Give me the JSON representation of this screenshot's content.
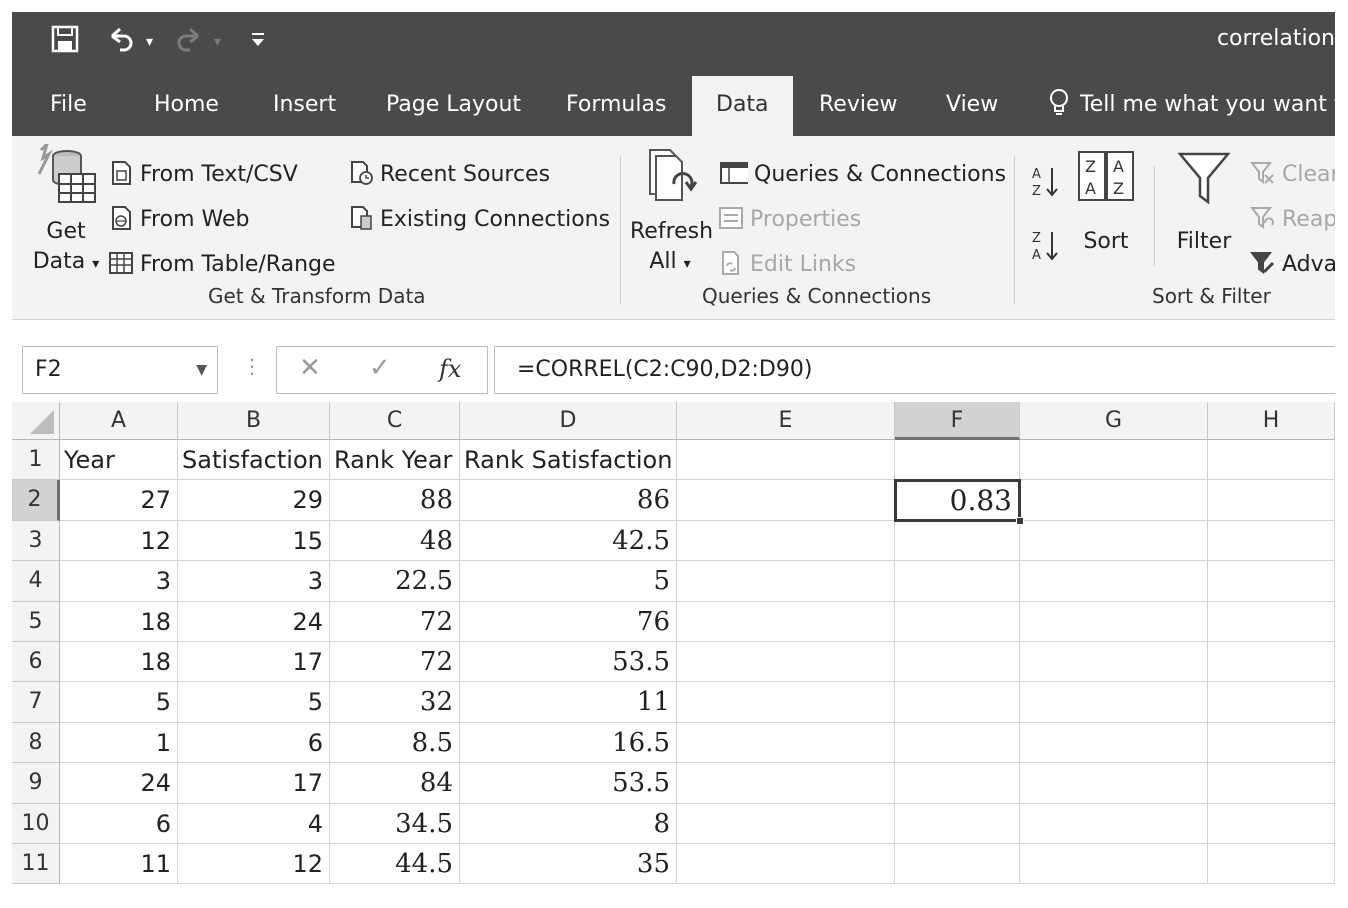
{
  "window": {
    "title": "correlation"
  },
  "quick_access": {
    "save_icon": "save-icon",
    "undo_icon": "undo-icon",
    "redo_icon": "redo-icon",
    "customize_icon": "customize-icon"
  },
  "tabs": [
    {
      "label": "File"
    },
    {
      "label": "Home"
    },
    {
      "label": "Insert"
    },
    {
      "label": "Page Layout"
    },
    {
      "label": "Formulas"
    },
    {
      "label": "Data",
      "active": true
    },
    {
      "label": "Review"
    },
    {
      "label": "View"
    }
  ],
  "tell_me": "Tell me what you want to",
  "ribbon": {
    "get_data": {
      "line1": "Get",
      "line2": "Data"
    },
    "from_text_csv": "From Text/CSV",
    "from_web": "From Web",
    "from_table_range": "From Table/Range",
    "recent_sources": "Recent Sources",
    "existing_connections": "Existing Connections",
    "group_get_transform": "Get & Transform Data",
    "refresh": {
      "line1": "Refresh",
      "line2": "All"
    },
    "queries_connections": "Queries & Connections",
    "properties": "Properties",
    "edit_links": "Edit Links",
    "group_queries": "Queries & Connections",
    "sort": "Sort",
    "filter": "Filter",
    "clear": "Clear",
    "reapply": "Reapply",
    "advanced": "Advanced",
    "group_sort_filter": "Sort & Filter"
  },
  "formula_bar": {
    "name_box": "F2",
    "cancel": "✕",
    "enter": "✓",
    "fx": "fx",
    "formula": "=CORREL(C2:C90,D2:D90)"
  },
  "grid": {
    "columns": [
      "A",
      "B",
      "C",
      "D",
      "E",
      "F",
      "G",
      "H"
    ],
    "selected_column": "F",
    "headers": [
      "Year",
      "Satisfaction",
      "Rank Year",
      "Rank Satisfaction"
    ],
    "rows": [
      [
        "27",
        "29",
        "88",
        "86"
      ],
      [
        "12",
        "15",
        "48",
        "42.5"
      ],
      [
        "3",
        "3",
        "22.5",
        "5"
      ],
      [
        "18",
        "24",
        "72",
        "76"
      ],
      [
        "18",
        "17",
        "72",
        "53.5"
      ],
      [
        "5",
        "5",
        "32",
        "11"
      ],
      [
        "1",
        "6",
        "8.5",
        "16.5"
      ],
      [
        "24",
        "17",
        "84",
        "53.5"
      ],
      [
        "6",
        "4",
        "34.5",
        "8"
      ],
      [
        "11",
        "12",
        "44.5",
        "35"
      ]
    ],
    "row_numbers": [
      "1",
      "2",
      "3",
      "4",
      "5",
      "6",
      "7",
      "8",
      "9",
      "10",
      "11"
    ],
    "active_cell": {
      "ref": "F2",
      "value": "0.83"
    }
  }
}
